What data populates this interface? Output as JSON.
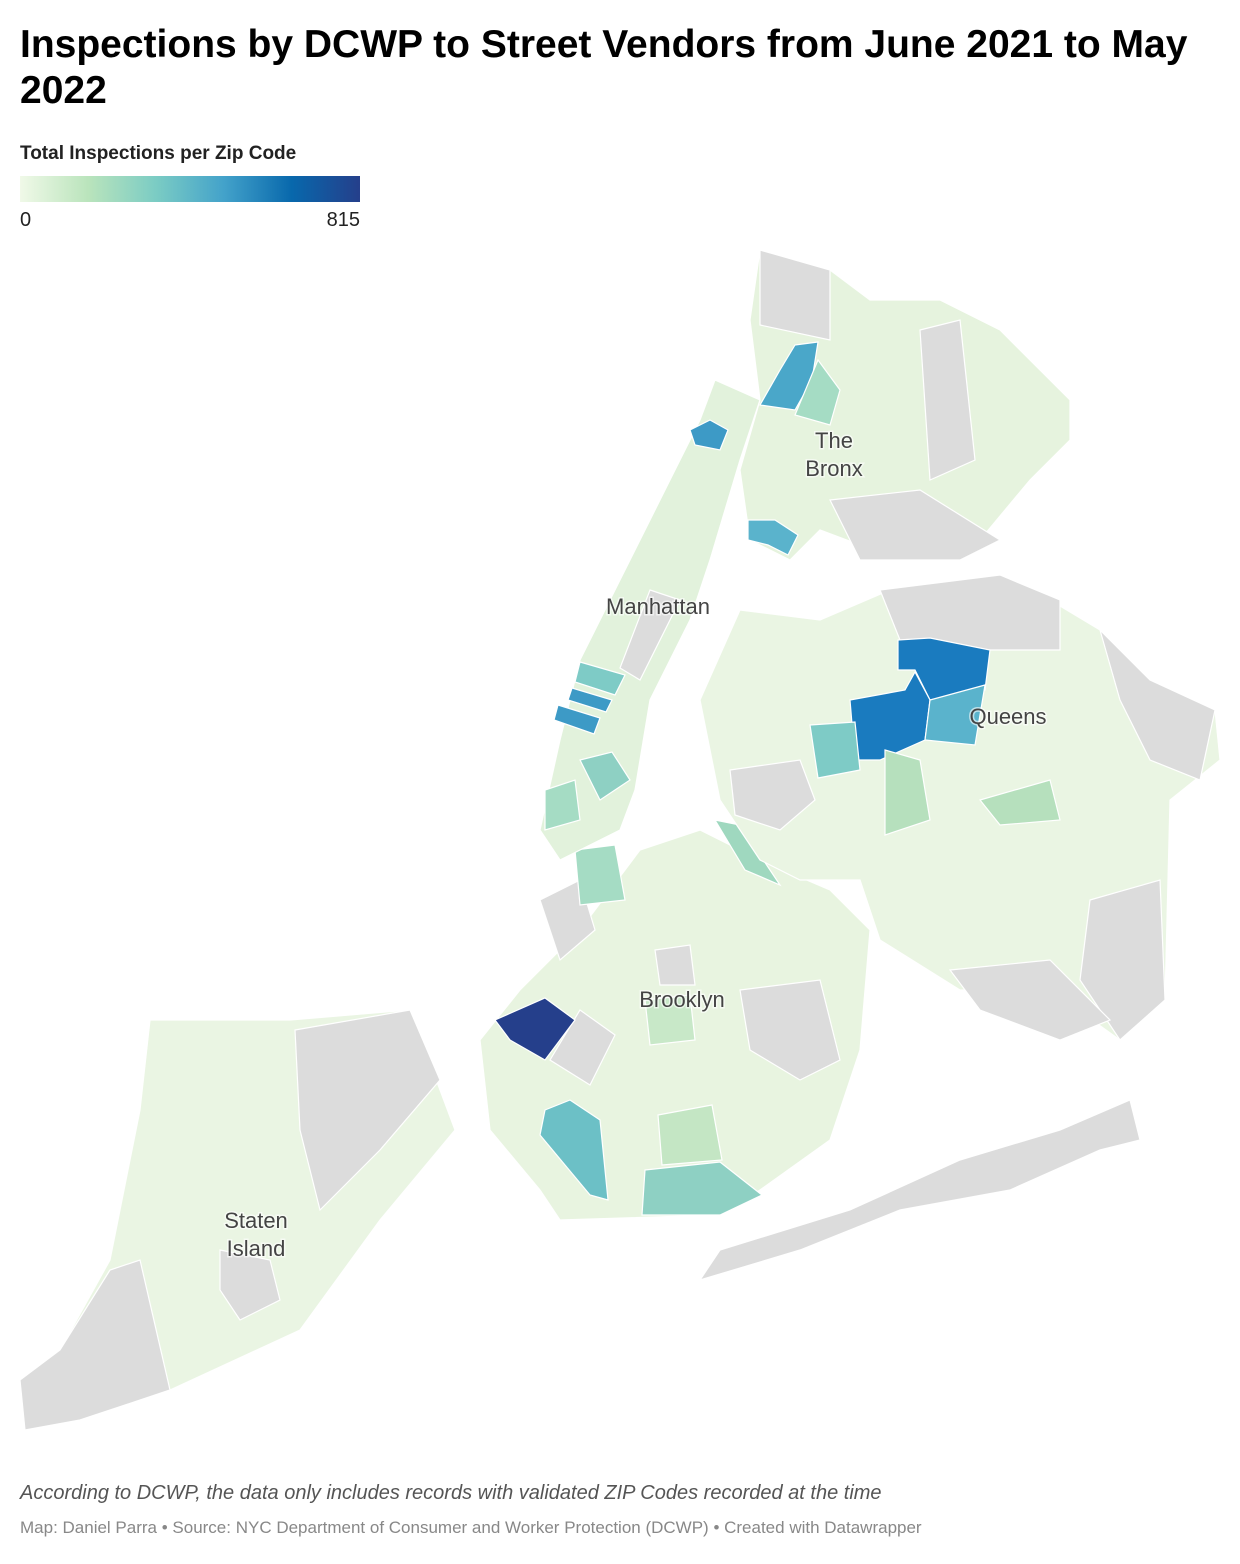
{
  "header": {
    "title": "Inspections by DCWP to Street Vendors from June 2021 to May 2022"
  },
  "legend": {
    "title": "Total Inspections per Zip Code",
    "min_label": "0",
    "max_label": "815",
    "colors": [
      "#f0f9e8",
      "#bae4bc",
      "#7bccc4",
      "#43a2ca",
      "#0868ac",
      "#253f8b"
    ]
  },
  "map": {
    "labels": [
      {
        "lines": [
          "The",
          "Bronx"
        ]
      },
      {
        "lines": [
          "Manhattan"
        ]
      },
      {
        "lines": [
          "Queens"
        ]
      },
      {
        "lines": [
          "Brooklyn"
        ]
      },
      {
        "lines": [
          "Staten",
          "Island"
        ]
      }
    ]
  },
  "footer": {
    "note": "According to DCWP, the data only includes records with validated ZIP Codes recorded at the time",
    "credits": "Map: Daniel Parra • Source: NYC Department of Consumer and Worker Protection (DCWP) • Created with Datawrapper"
  }
}
